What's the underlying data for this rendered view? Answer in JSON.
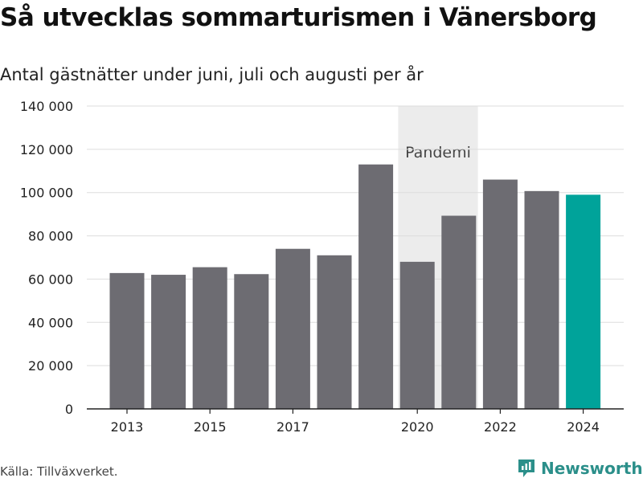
{
  "chart_data": {
    "type": "bar",
    "title": "Så utvecklas sommarturismen i Vänersborg",
    "subtitle": "Antal gästnätter under juni, juli och augusti per år",
    "categories": [
      2013,
      2014,
      2015,
      2016,
      2017,
      2018,
      2019,
      2020,
      2021,
      2022,
      2023,
      2024
    ],
    "values": [
      62800,
      62000,
      65500,
      62300,
      74000,
      71000,
      113000,
      68000,
      89300,
      106000,
      100700,
      99000
    ],
    "x_tick_labels": [
      "2013",
      "2015",
      "2017",
      "2020",
      "2022",
      "2024"
    ],
    "x_tick_values": [
      2013,
      2015,
      2017,
      2020,
      2022,
      2024
    ],
    "y_tick_labels": [
      "0",
      "20 000",
      "40 000",
      "60 000",
      "80 000",
      "100 000",
      "120 000",
      "140 000"
    ],
    "y_tick_values": [
      0,
      20000,
      40000,
      60000,
      80000,
      100000,
      120000,
      140000
    ],
    "ylim": [
      0,
      140000
    ],
    "grid": true,
    "annotation": {
      "label": "Pandemi",
      "from": 2020,
      "to": 2021
    },
    "colors": {
      "bar": "#6d6c72",
      "highlight": "#00a39a",
      "band": "#ececec",
      "grid": "#dddddd"
    },
    "highlight_category": 2024
  },
  "source": "Källa: Tillväxverket.",
  "brand": {
    "name": "Newsworthy",
    "icon": "newsworthy-logo-icon",
    "color": "#2b8f8a"
  }
}
